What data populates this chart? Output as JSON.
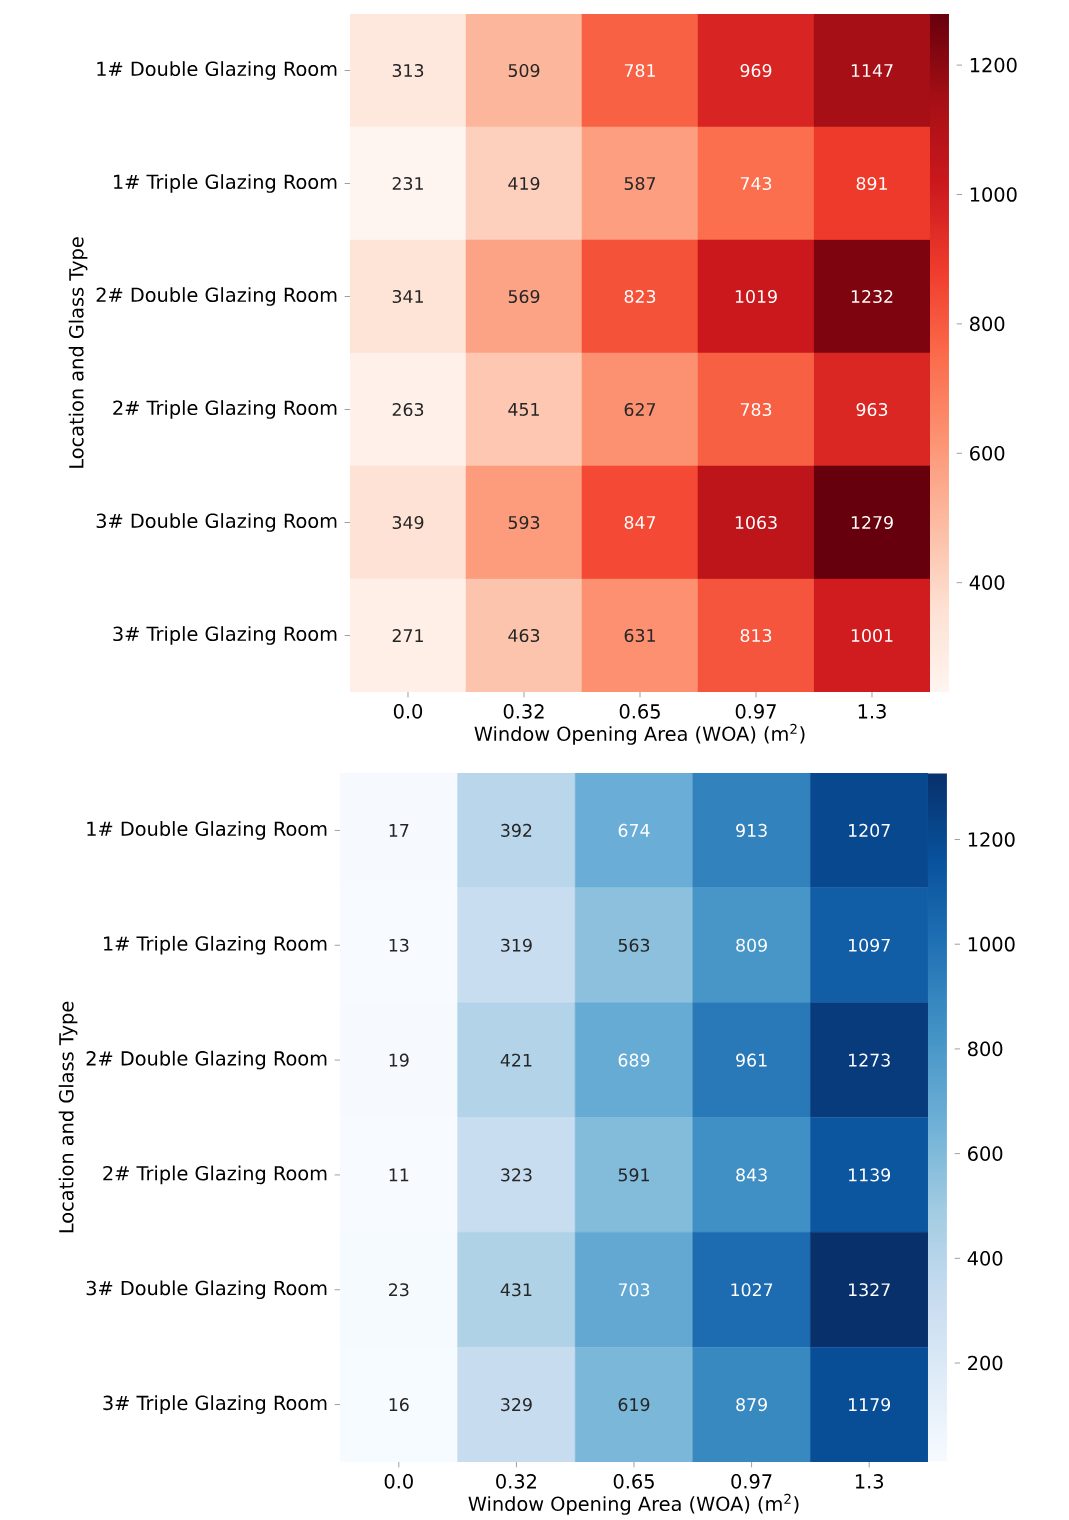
{
  "chart_data": [
    {
      "type": "heatmap",
      "xlabel": "Window Opening Area (WOA) (m$^{2}$)",
      "ylabel": "Location and Glass Type",
      "color": "#67000d",
      "categories": [
        "0.0",
        "0.32",
        "0.65",
        "0.97",
        "1.3"
      ],
      "y_categories": [
        "1# Double Glazing Room",
        "1# Triple Glazing Room",
        "2# Double Glazing Room",
        "2# Triple Glazing Room",
        "3# Double Glazing Room",
        "3# Triple Glazing Room"
      ],
      "cells": [
        [
          313,
          509,
          781,
          969,
          1147
        ],
        [
          231,
          419,
          587,
          743,
          891
        ],
        [
          341,
          569,
          823,
          1019,
          1232
        ],
        [
          263,
          451,
          627,
          783,
          963
        ],
        [
          349,
          593,
          847,
          1063,
          1279
        ],
        [
          271,
          463,
          631,
          813,
          1001
        ]
      ],
      "clim": [
        231,
        1279
      ],
      "cticks": [
        400,
        600,
        800,
        1000,
        1200
      ],
      "data_labels": true
    },
    {
      "type": "heatmap",
      "xlabel": "Window Opening Area (WOA) (m$^{2}$)",
      "ylabel": "Location and Glass Type",
      "color": "#08306b",
      "categories": [
        "0.0",
        "0.32",
        "0.65",
        "0.97",
        "1.3"
      ],
      "y_categories": [
        "1# Double Glazing Room",
        "1# Triple Glazing Room",
        "2# Double Glazing Room",
        "2# Triple Glazing Room",
        "3# Double Glazing Room",
        "3# Triple Glazing Room"
      ],
      "cells": [
        [
          17,
          392,
          674,
          913,
          1207
        ],
        [
          13,
          319,
          563,
          809,
          1097
        ],
        [
          19,
          421,
          689,
          961,
          1273
        ],
        [
          11,
          323,
          591,
          843,
          1139
        ],
        [
          23,
          431,
          703,
          1027,
          1327
        ],
        [
          16,
          329,
          619,
          879,
          1179
        ]
      ],
      "clim": [
        11,
        1327
      ],
      "cticks": [
        200,
        400,
        600,
        800,
        1000,
        1200
      ],
      "data_labels": true
    }
  ]
}
